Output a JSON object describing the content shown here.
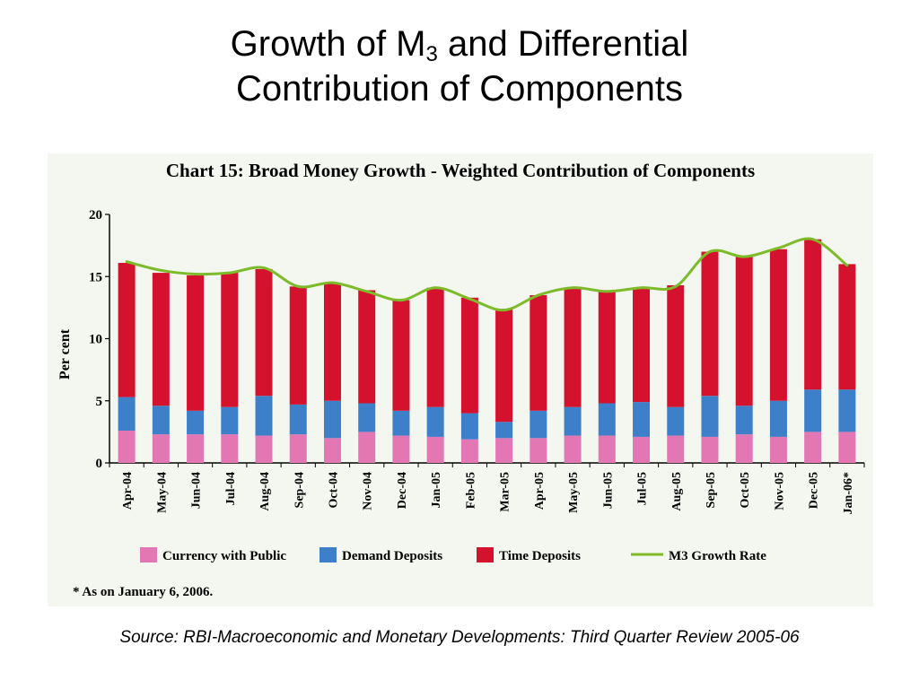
{
  "slide": {
    "title_prefix": "Growth of M",
    "title_subscript": "3",
    "title_line1_suffix": " and Differential",
    "title_line2": "Contribution of Components",
    "source": "Source: RBI-Macroeconomic and Monetary Developments: Third Quarter Review 2005-06"
  },
  "chart_data": {
    "type": "bar",
    "stacked": true,
    "title": "Chart 15: Broad Money Growth - Weighted Contribution of Components",
    "ylabel": "Per cent",
    "xlabel": "",
    "ylim": [
      0,
      20
    ],
    "yticks": [
      0,
      5,
      10,
      15,
      20
    ],
    "grid": false,
    "legend_position": "bottom",
    "footnote": "* As on January 6, 2006.",
    "categories": [
      "Apr-04",
      "May-04",
      "Jun-04",
      "Jul-04",
      "Aug-04",
      "Sep-04",
      "Oct-04",
      "Nov-04",
      "Dec-04",
      "Jan-05",
      "Feb-05",
      "Mar-05",
      "Apr-05",
      "May-05",
      "Jun-05",
      "Jul-05",
      "Aug-05",
      "Sep-05",
      "Oct-05",
      "Nov-05",
      "Dec-05",
      "Jan-06*"
    ],
    "series": [
      {
        "name": "Currency with Public",
        "kind": "bar",
        "color": "#e377b4",
        "values": [
          2.6,
          2.3,
          2.3,
          2.3,
          2.2,
          2.3,
          2.0,
          2.5,
          2.2,
          2.1,
          1.9,
          2.0,
          2.0,
          2.2,
          2.2,
          2.1,
          2.2,
          2.1,
          2.3,
          2.1,
          2.5,
          2.5
        ]
      },
      {
        "name": "Demand Deposits",
        "kind": "bar",
        "color": "#3d7fc9",
        "values": [
          2.7,
          2.3,
          1.9,
          2.2,
          3.2,
          2.4,
          3.0,
          2.3,
          2.0,
          2.4,
          2.1,
          1.3,
          2.2,
          2.3,
          2.6,
          2.8,
          2.3,
          3.3,
          2.3,
          2.9,
          3.4,
          3.4
        ]
      },
      {
        "name": "Time Deposits",
        "kind": "bar",
        "color": "#d4122e",
        "values": [
          10.8,
          10.7,
          10.9,
          10.8,
          10.2,
          9.5,
          9.5,
          9.1,
          8.9,
          9.6,
          9.3,
          9.1,
          9.3,
          9.6,
          9.0,
          9.2,
          9.8,
          11.6,
          12.0,
          12.2,
          12.1,
          10.1
        ]
      },
      {
        "name": "M3 Growth Rate",
        "kind": "line",
        "color": "#7dbb2a",
        "values": [
          16.2,
          15.5,
          15.2,
          15.3,
          15.7,
          14.2,
          14.5,
          13.8,
          13.1,
          14.1,
          13.2,
          12.3,
          13.5,
          14.1,
          13.8,
          14.1,
          14.2,
          17.0,
          16.6,
          17.3,
          18.0,
          15.9
        ]
      }
    ]
  }
}
